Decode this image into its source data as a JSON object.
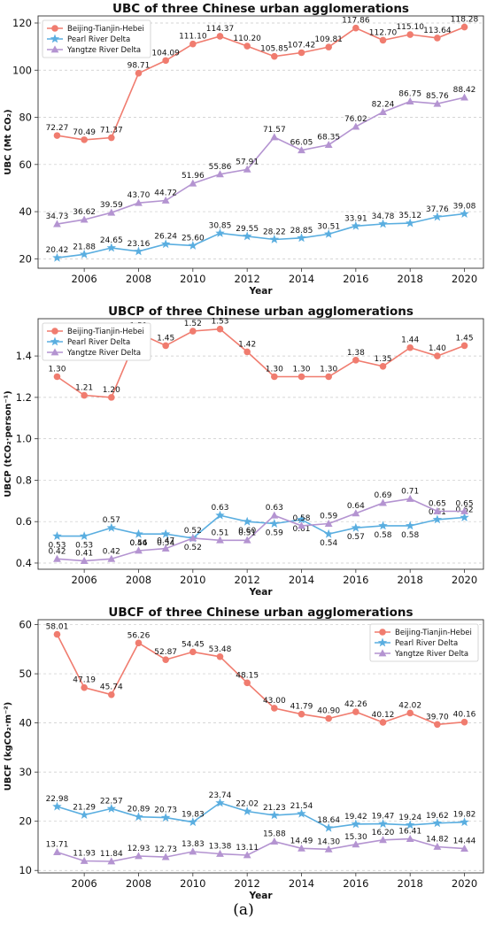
{
  "chart_data": [
    {
      "type": "line",
      "title": "UBC of three Chinese urban agglomerations",
      "xlabel": "Year",
      "ylabel": "UBC (Mt CO₂)",
      "x": [
        2005,
        2006,
        2007,
        2008,
        2009,
        2010,
        2011,
        2012,
        2013,
        2014,
        2015,
        2016,
        2017,
        2018,
        2019,
        2020
      ],
      "xticks": [
        "2006",
        "2008",
        "2010",
        "2012",
        "2014",
        "2016",
        "2018",
        "2020"
      ],
      "yticks": [
        "20",
        "40",
        "60",
        "80",
        "100",
        "120"
      ],
      "ylim": [
        16,
        123
      ],
      "xlim": [
        2004.3,
        2020.7
      ],
      "legend_position": "top-left",
      "grid": "horizontal dashed",
      "series": [
        {
          "name": "Beijing-Tianjin-Hebei",
          "color": "#f07c6f",
          "marker": "circle",
          "values": [
            72.27,
            70.49,
            71.37,
            98.71,
            104.09,
            111.1,
            114.37,
            110.2,
            105.85,
            107.42,
            109.81,
            117.86,
            112.7,
            115.1,
            113.64,
            118.28
          ],
          "labels": [
            "72.27",
            "70.49",
            "71.37",
            "98.71",
            "104.09",
            "111.10",
            "114.37",
            "110.20",
            "105.85",
            "107.42",
            "109.81",
            "117.86",
            "112.70",
            "115.10",
            "113.64",
            "118.28"
          ]
        },
        {
          "name": "Pearl River Delta",
          "color": "#5aaee0",
          "marker": "star",
          "values": [
            20.42,
            21.88,
            24.65,
            23.16,
            26.24,
            25.6,
            30.85,
            29.55,
            28.22,
            28.85,
            30.51,
            33.91,
            34.78,
            35.12,
            37.76,
            39.08
          ],
          "labels": [
            "20.42",
            "21.88",
            "24.65",
            "23.16",
            "26.24",
            "25.60",
            "30.85",
            "29.55",
            "28.22",
            "28.85",
            "30.51",
            "33.91",
            "34.78",
            "35.12",
            "37.76",
            "39.08"
          ]
        },
        {
          "name": "Yangtze River Delta",
          "color": "#b494d1",
          "marker": "triangle",
          "values": [
            34.73,
            36.62,
            39.59,
            43.7,
            44.72,
            51.96,
            55.86,
            57.91,
            71.57,
            66.05,
            68.35,
            76.02,
            82.24,
            86.75,
            85.76,
            88.42
          ],
          "labels": [
            "34.73",
            "36.62",
            "39.59",
            "43.70",
            "44.72",
            "51.96",
            "55.86",
            "57.91",
            "71.57",
            "66.05",
            "68.35",
            "76.02",
            "82.24",
            "86.75",
            "85.76",
            "88.42"
          ]
        }
      ]
    },
    {
      "type": "line",
      "title": "UBCP of three Chinese urban agglomerations",
      "xlabel": "Year",
      "ylabel": "UBCP (tCO₂·person⁻¹)",
      "x": [
        2005,
        2006,
        2007,
        2008,
        2009,
        2010,
        2011,
        2012,
        2013,
        2014,
        2015,
        2016,
        2017,
        2018,
        2019,
        2020
      ],
      "xticks": [
        "2006",
        "2008",
        "2010",
        "2012",
        "2014",
        "2016",
        "2018",
        "2020"
      ],
      "yticks": [
        "0.4",
        "0.6",
        "0.8",
        "1.0",
        "1.2",
        "1.4"
      ],
      "ylim": [
        0.37,
        1.58
      ],
      "xlim": [
        2004.3,
        2020.7
      ],
      "legend_position": "top-left",
      "grid": "horizontal dashed",
      "series": [
        {
          "name": "Beijing-Tianjin-Hebei",
          "color": "#f07c6f",
          "marker": "circle",
          "values": [
            1.3,
            1.21,
            1.2,
            1.51,
            1.45,
            1.52,
            1.53,
            1.42,
            1.3,
            1.3,
            1.3,
            1.38,
            1.35,
            1.44,
            1.4,
            1.45
          ],
          "labels": [
            "1.30",
            "1.21",
            "1.20",
            "1.51",
            "1.45",
            "1.52",
            "1.53",
            "1.42",
            "1.30",
            "1.30",
            "1.30",
            "1.38",
            "1.35",
            "1.44",
            "1.40",
            "1.45"
          ]
        },
        {
          "name": "Pearl River Delta",
          "color": "#5aaee0",
          "marker": "star",
          "values": [
            0.53,
            0.53,
            0.57,
            0.54,
            0.54,
            0.52,
            0.63,
            0.6,
            0.59,
            0.61,
            0.54,
            0.57,
            0.58,
            0.58,
            0.61,
            0.62
          ],
          "labels": [
            "0.53",
            "0.53",
            "0.57",
            "0.54",
            "0.54",
            "0.52",
            "0.63",
            "0.60",
            "0.59",
            "0.61",
            "0.54",
            "0.57",
            "0.58",
            "0.58",
            "0.61",
            "0.62"
          ]
        },
        {
          "name": "Yangtze River Delta",
          "color": "#b494d1",
          "marker": "triangle",
          "values": [
            0.42,
            0.41,
            0.42,
            0.46,
            0.47,
            0.52,
            0.51,
            0.51,
            0.63,
            0.58,
            0.59,
            0.64,
            0.69,
            0.71,
            0.65,
            0.65
          ],
          "labels": [
            "0.42",
            "0.41",
            "0.42",
            "0.46",
            "0.47",
            "0.52",
            "0.51",
            "0.51",
            "0.63",
            "0.58",
            "0.59",
            "0.64",
            "0.69",
            "0.71",
            "0.65",
            "0.65"
          ]
        }
      ]
    },
    {
      "type": "line",
      "title": "UBCF of three Chinese urban agglomerations",
      "xlabel": "Year",
      "ylabel": "UBCF (kgCO₂·m⁻²)",
      "x": [
        2005,
        2006,
        2007,
        2008,
        2009,
        2010,
        2011,
        2012,
        2013,
        2014,
        2015,
        2016,
        2017,
        2018,
        2019,
        2020
      ],
      "xticks": [
        "2006",
        "2008",
        "2010",
        "2012",
        "2014",
        "2016",
        "2018",
        "2020"
      ],
      "yticks": [
        "10",
        "20",
        "30",
        "40",
        "50",
        "60"
      ],
      "ylim": [
        9.5,
        61
      ],
      "xlim": [
        2004.3,
        2020.7
      ],
      "legend_position": "top-right",
      "grid": "horizontal dashed",
      "series": [
        {
          "name": "Beijing-Tianjin-Hebei",
          "color": "#f07c6f",
          "marker": "circle",
          "values": [
            58.01,
            47.19,
            45.74,
            56.26,
            52.87,
            54.45,
            53.48,
            48.15,
            43.0,
            41.79,
            40.9,
            42.26,
            40.12,
            42.02,
            39.7,
            40.16
          ],
          "labels": [
            "58.01",
            "47.19",
            "45.74",
            "56.26",
            "52.87",
            "54.45",
            "53.48",
            "48.15",
            "43.00",
            "41.79",
            "40.90",
            "42.26",
            "40.12",
            "42.02",
            "39.70",
            "40.16"
          ]
        },
        {
          "name": "Pearl River Delta",
          "color": "#5aaee0",
          "marker": "star",
          "values": [
            22.98,
            21.29,
            22.57,
            20.89,
            20.73,
            19.83,
            23.74,
            22.02,
            21.23,
            21.54,
            18.64,
            19.42,
            19.47,
            19.24,
            19.62,
            19.82
          ],
          "labels": [
            "22.98",
            "21.29",
            "22.57",
            "20.89",
            "20.73",
            "19.83",
            "23.74",
            "22.02",
            "21.23",
            "21.54",
            "18.64",
            "19.42",
            "19.47",
            "19.24",
            "19.62",
            "19.82"
          ]
        },
        {
          "name": "Yangtze River Delta",
          "color": "#b494d1",
          "marker": "triangle",
          "values": [
            13.71,
            11.93,
            11.84,
            12.93,
            12.73,
            13.83,
            13.38,
            13.11,
            15.88,
            14.49,
            14.3,
            15.3,
            16.2,
            16.41,
            14.82,
            14.44
          ],
          "labels": [
            "13.71",
            "11.93",
            "11.84",
            "12.93",
            "12.73",
            "13.83",
            "13.38",
            "13.11",
            "15.88",
            "14.49",
            "14.30",
            "15.30",
            "16.20",
            "16.41",
            "14.82",
            "14.44"
          ]
        }
      ]
    }
  ],
  "caption": "(a)"
}
